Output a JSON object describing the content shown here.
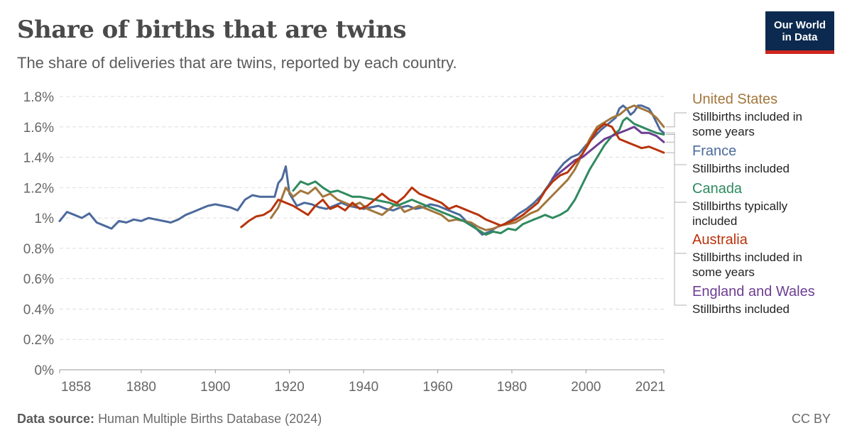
{
  "header": {
    "title": "Share of births that are twins",
    "subtitle": "The share of deliveries that are twins, reported by each country."
  },
  "logo": {
    "line1": "Our World",
    "line2": "in Data"
  },
  "footer": {
    "source_label": "Data source:",
    "source_text": "Human Multiple Births Database (2024)",
    "license": "CC BY"
  },
  "chart_data": {
    "type": "line",
    "title": "Share of births that are twins",
    "xlim": [
      1858,
      2021
    ],
    "ylim": [
      0,
      1.8
    ],
    "y_unit": "%",
    "grid": "horizontal dashed",
    "legend": "right, inline labels",
    "x_ticks": [
      "1858",
      "1880",
      "1900",
      "1920",
      "1940",
      "1960",
      "1980",
      "2000",
      "2021"
    ],
    "y_ticks": [
      "0%",
      "0.2%",
      "0.4%",
      "0.6%",
      "0.8%",
      "1%",
      "1.2%",
      "1.4%",
      "1.6%",
      "1.8%"
    ],
    "series": [
      {
        "name": "United States",
        "note": [
          "Stillbirths included in",
          "some years"
        ],
        "color": "#a2763c",
        "x": [
          1915,
          1917,
          1919,
          1921,
          1923,
          1925,
          1927,
          1929,
          1931,
          1933,
          1935,
          1937,
          1939,
          1941,
          1943,
          1945,
          1947,
          1949,
          1951,
          1953,
          1955,
          1957,
          1959,
          1961,
          1963,
          1965,
          1967,
          1969,
          1971,
          1973,
          1975,
          1977,
          1979,
          1981,
          1983,
          1985,
          1987,
          1989,
          1991,
          1993,
          1995,
          1997,
          1999,
          2001,
          2003,
          2005,
          2007,
          2009,
          2011,
          2013,
          2015,
          2017,
          2019,
          2021
        ],
        "y": [
          1.0,
          1.07,
          1.2,
          1.14,
          1.18,
          1.16,
          1.2,
          1.14,
          1.16,
          1.12,
          1.1,
          1.08,
          1.1,
          1.06,
          1.04,
          1.02,
          1.06,
          1.1,
          1.04,
          1.06,
          1.08,
          1.06,
          1.04,
          1.02,
          0.98,
          0.99,
          0.98,
          0.97,
          0.94,
          0.92,
          0.93,
          0.95,
          0.96,
          0.97,
          1.0,
          1.03,
          1.05,
          1.1,
          1.15,
          1.2,
          1.25,
          1.32,
          1.42,
          1.52,
          1.6,
          1.63,
          1.66,
          1.68,
          1.72,
          1.74,
          1.72,
          1.7,
          1.66,
          1.6
        ]
      },
      {
        "name": "France",
        "note": [
          "Stillbirths included"
        ],
        "color": "#4c6a9c",
        "x": [
          1858,
          1860,
          1862,
          1864,
          1866,
          1868,
          1870,
          1872,
          1874,
          1876,
          1878,
          1880,
          1882,
          1884,
          1886,
          1888,
          1890,
          1892,
          1894,
          1896,
          1898,
          1900,
          1902,
          1904,
          1906,
          1908,
          1910,
          1912,
          1914,
          1916,
          1917,
          1918,
          1919,
          1920,
          1922,
          1924,
          1926,
          1928,
          1930,
          1932,
          1934,
          1936,
          1938,
          1940,
          1942,
          1944,
          1946,
          1948,
          1950,
          1952,
          1954,
          1956,
          1958,
          1960,
          1962,
          1964,
          1966,
          1968,
          1970,
          1972,
          1974,
          1976,
          1978,
          1980,
          1982,
          1984,
          1986,
          1988,
          1990,
          1992,
          1994,
          1996,
          1998,
          2000,
          2002,
          2004,
          2006,
          2008,
          2009,
          2010,
          2011,
          2012,
          2013,
          2014,
          2015,
          2016,
          2017,
          2018,
          2019,
          2020,
          2021
        ],
        "y": [
          0.98,
          1.04,
          1.02,
          1.0,
          1.03,
          0.97,
          0.95,
          0.93,
          0.98,
          0.97,
          0.99,
          0.98,
          1.0,
          0.99,
          0.98,
          0.97,
          0.99,
          1.02,
          1.04,
          1.06,
          1.08,
          1.09,
          1.08,
          1.07,
          1.05,
          1.12,
          1.15,
          1.14,
          1.14,
          1.14,
          1.23,
          1.26,
          1.34,
          1.16,
          1.08,
          1.1,
          1.09,
          1.07,
          1.06,
          1.08,
          1.1,
          1.08,
          1.07,
          1.06,
          1.07,
          1.08,
          1.06,
          1.05,
          1.07,
          1.08,
          1.06,
          1.07,
          1.09,
          1.08,
          1.06,
          1.04,
          1.02,
          0.97,
          0.94,
          0.89,
          0.91,
          0.94,
          0.96,
          0.99,
          1.03,
          1.06,
          1.1,
          1.15,
          1.22,
          1.3,
          1.36,
          1.4,
          1.42,
          1.48,
          1.53,
          1.58,
          1.62,
          1.66,
          1.72,
          1.74,
          1.72,
          1.68,
          1.7,
          1.74,
          1.74,
          1.73,
          1.72,
          1.68,
          1.63,
          1.58,
          1.56
        ]
      },
      {
        "name": "Canada",
        "note": [
          "Stillbirths typically",
          "included"
        ],
        "color": "#2f8a5f",
        "x": [
          1921,
          1923,
          1925,
          1927,
          1929,
          1931,
          1933,
          1935,
          1937,
          1939,
          1941,
          1943,
          1945,
          1947,
          1949,
          1951,
          1953,
          1955,
          1957,
          1959,
          1961,
          1963,
          1965,
          1967,
          1969,
          1971,
          1973,
          1975,
          1977,
          1979,
          1981,
          1983,
          1985,
          1987,
          1989,
          1991,
          1993,
          1995,
          1997,
          1999,
          2001,
          2003,
          2005,
          2007,
          2009,
          2010,
          2011,
          2013,
          2015,
          2017,
          2019,
          2021
        ],
        "y": [
          1.18,
          1.24,
          1.22,
          1.24,
          1.2,
          1.17,
          1.18,
          1.16,
          1.14,
          1.14,
          1.13,
          1.12,
          1.11,
          1.1,
          1.08,
          1.1,
          1.12,
          1.1,
          1.08,
          1.06,
          1.04,
          1.02,
          1.0,
          0.98,
          0.95,
          0.92,
          0.89,
          0.91,
          0.9,
          0.93,
          0.92,
          0.96,
          0.98,
          1.0,
          1.02,
          1.0,
          1.02,
          1.05,
          1.12,
          1.22,
          1.32,
          1.4,
          1.48,
          1.54,
          1.58,
          1.64,
          1.66,
          1.62,
          1.6,
          1.58,
          1.56,
          1.55
        ]
      },
      {
        "name": "Australia",
        "note": [
          "Stillbirths included in",
          "some years"
        ],
        "color": "#b8340c",
        "x": [
          1907,
          1909,
          1911,
          1913,
          1915,
          1917,
          1919,
          1921,
          1923,
          1925,
          1927,
          1929,
          1931,
          1933,
          1935,
          1937,
          1939,
          1941,
          1943,
          1945,
          1947,
          1949,
          1951,
          1953,
          1955,
          1957,
          1959,
          1961,
          1963,
          1965,
          1967,
          1969,
          1971,
          1973,
          1975,
          1977,
          1979,
          1981,
          1983,
          1985,
          1987,
          1989,
          1991,
          1993,
          1995,
          1997,
          1999,
          2001,
          2003,
          2005,
          2007,
          2009,
          2011,
          2013,
          2015,
          2017,
          2019,
          2021
        ],
        "y": [
          0.94,
          0.98,
          1.01,
          1.02,
          1.05,
          1.12,
          1.1,
          1.08,
          1.05,
          1.02,
          1.08,
          1.12,
          1.06,
          1.08,
          1.05,
          1.1,
          1.06,
          1.08,
          1.12,
          1.16,
          1.12,
          1.1,
          1.14,
          1.2,
          1.16,
          1.14,
          1.12,
          1.1,
          1.06,
          1.08,
          1.06,
          1.04,
          1.02,
          0.99,
          0.97,
          0.95,
          0.97,
          0.99,
          1.02,
          1.06,
          1.1,
          1.18,
          1.24,
          1.28,
          1.3,
          1.36,
          1.42,
          1.5,
          1.58,
          1.62,
          1.6,
          1.52,
          1.5,
          1.48,
          1.46,
          1.47,
          1.45,
          1.43
        ]
      },
      {
        "name": "England and Wales",
        "note": [
          "Stillbirths included"
        ],
        "color": "#6d3e91",
        "x": [
          1991,
          1993,
          1995,
          1997,
          1999,
          2001,
          2003,
          2005,
          2007,
          2009,
          2011,
          2013,
          2015,
          2017,
          2019,
          2021
        ],
        "y": [
          1.26,
          1.3,
          1.34,
          1.38,
          1.4,
          1.44,
          1.48,
          1.52,
          1.54,
          1.56,
          1.58,
          1.6,
          1.56,
          1.56,
          1.54,
          1.5
        ]
      }
    ]
  }
}
